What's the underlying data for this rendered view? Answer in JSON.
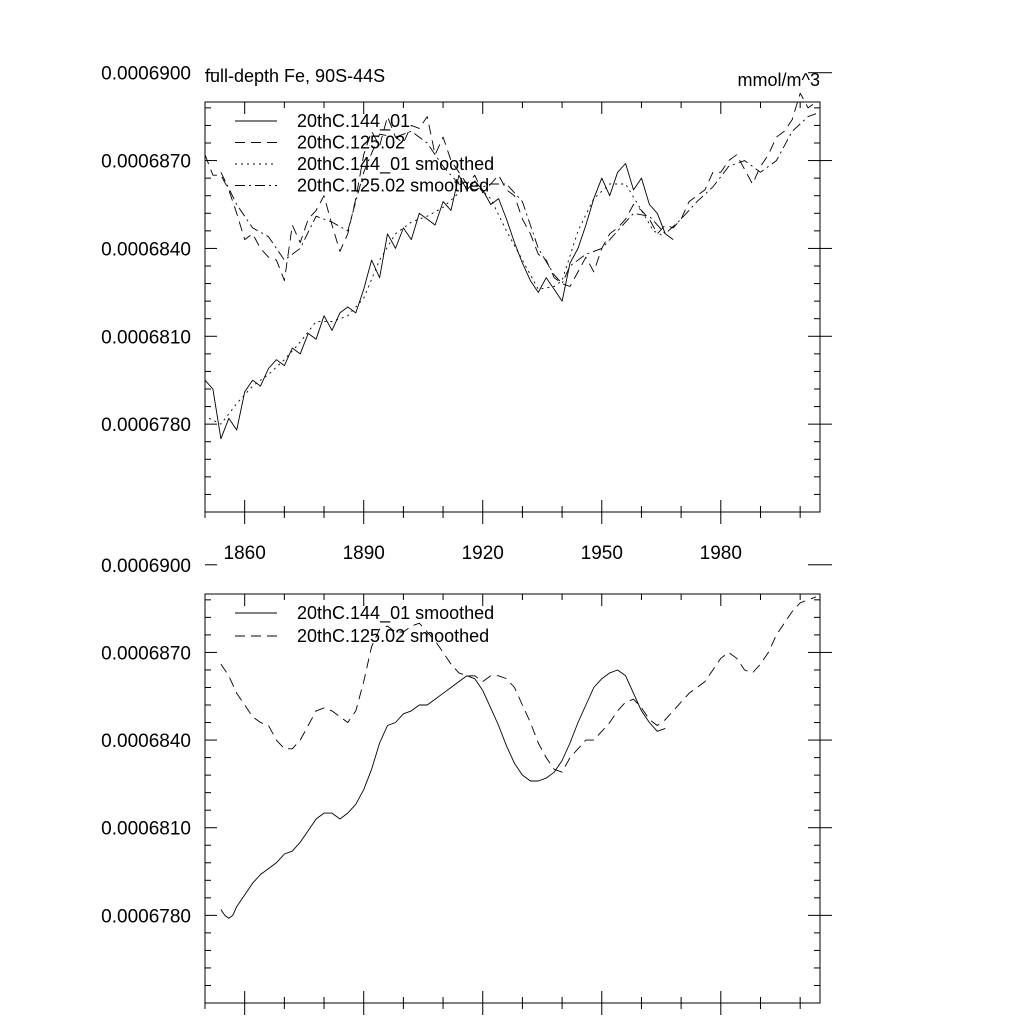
{
  "chart_data": [
    {
      "type": "line",
      "title": "full-depth Fe, 90S-44S",
      "units": "mmol/m^3",
      "xlim": [
        1850,
        2005
      ],
      "ylim": [
        0.000675,
        0.000689
      ],
      "xticks": [
        1860,
        1890,
        1920,
        1950,
        1980
      ],
      "xtick_labels": [
        "1860",
        "1890",
        "1920",
        "1950",
        "1980"
      ],
      "yticks": [
        0.000678,
        0.000681,
        0.000684,
        0.000687,
        0.00069
      ],
      "ytick_labels": [
        "0.0006780",
        "0.0006810",
        "0.0006840",
        "0.0006870",
        "0.0006900"
      ],
      "legend_position": "top-left",
      "series": [
        {
          "name": "20thC.144_01",
          "style": "solid",
          "x": [
            1850,
            1852,
            1854,
            1856,
            1858,
            1860,
            1862,
            1864,
            1866,
            1868,
            1870,
            1872,
            1874,
            1876,
            1878,
            1880,
            1882,
            1884,
            1886,
            1888,
            1890,
            1892,
            1894,
            1896,
            1898,
            1900,
            1902,
            1904,
            1906,
            1908,
            1910,
            1912,
            1914,
            1916,
            1918,
            1920,
            1922,
            1924,
            1926,
            1928,
            1930,
            1932,
            1934,
            1936,
            1938,
            1940,
            1942,
            1944,
            1946,
            1948,
            1950,
            1952,
            1954,
            1956,
            1958,
            1960,
            1962,
            1964,
            1966,
            1968
          ],
          "values": [
            0.0006795,
            0.0006792,
            0.0006775,
            0.0006782,
            0.0006778,
            0.0006791,
            0.0006795,
            0.0006793,
            0.0006799,
            0.0006802,
            0.00068,
            0.0006806,
            0.0006804,
            0.0006811,
            0.0006809,
            0.0006817,
            0.0006812,
            0.0006818,
            0.000682,
            0.0006818,
            0.0006826,
            0.0006836,
            0.000683,
            0.0006845,
            0.000684,
            0.0006847,
            0.0006843,
            0.0006852,
            0.000685,
            0.0006848,
            0.0006856,
            0.0006853,
            0.0006865,
            0.000686,
            0.0006863,
            0.000686,
            0.0006855,
            0.0006857,
            0.000685,
            0.0006842,
            0.0006835,
            0.0006829,
            0.0006825,
            0.000683,
            0.0006826,
            0.0006822,
            0.0006835,
            0.000684,
            0.0006848,
            0.0006857,
            0.0006864,
            0.0006858,
            0.0006866,
            0.0006869,
            0.000686,
            0.0006864,
            0.0006855,
            0.0006852,
            0.0006845,
            0.0006843
          ]
        },
        {
          "name": "20thC.125.02",
          "style": "dashed",
          "x": [
            1850,
            1852,
            1854,
            1856,
            1858,
            1860,
            1862,
            1864,
            1866,
            1868,
            1870,
            1872,
            1874,
            1876,
            1878,
            1880,
            1882,
            1884,
            1886,
            1888,
            1890,
            1892,
            1894,
            1896,
            1898,
            1900,
            1902,
            1904,
            1906,
            1908,
            1910,
            1912,
            1914,
            1916,
            1918,
            1920,
            1922,
            1924,
            1926,
            1928,
            1930,
            1932,
            1934,
            1936,
            1938,
            1940,
            1942,
            1944,
            1946,
            1948,
            1950,
            1952,
            1954,
            1956,
            1958,
            1960,
            1962,
            1964,
            1966,
            1968,
            1970,
            1972,
            1974,
            1976,
            1978,
            1980,
            1982,
            1984,
            1986,
            1988,
            1990,
            1992,
            1994,
            1996,
            1998,
            2000,
            2002,
            2004
          ],
          "values": [
            0.0006872,
            0.0006865,
            0.0006865,
            0.000686,
            0.0006852,
            0.0006843,
            0.0006845,
            0.000684,
            0.0006837,
            0.0006836,
            0.0006829,
            0.0006848,
            0.0006842,
            0.000685,
            0.0006853,
            0.0006858,
            0.0006848,
            0.0006839,
            0.0006845,
            0.0006857,
            0.0006872,
            0.000688,
            0.0006875,
            0.0006885,
            0.0006878,
            0.0006876,
            0.0006882,
            0.0006881,
            0.0006885,
            0.0006872,
            0.0006878,
            0.000687,
            0.0006866,
            0.0006862,
            0.0006865,
            0.0006859,
            0.0006862,
            0.0006865,
            0.000686,
            0.0006858,
            0.000685,
            0.0006845,
            0.0006838,
            0.0006836,
            0.000683,
            0.0006828,
            0.0006827,
            0.0006832,
            0.0006837,
            0.0006832,
            0.000684,
            0.0006845,
            0.0006847,
            0.000685,
            0.0006855,
            0.0006853,
            0.000685,
            0.0006845,
            0.0006848,
            0.0006847,
            0.000685,
            0.0006856,
            0.0006858,
            0.000686,
            0.0006866,
            0.0006866,
            0.000687,
            0.0006872,
            0.0006867,
            0.0006862,
            0.0006868,
            0.0006872,
            0.0006878,
            0.000688,
            0.0006884,
            0.0006893,
            0.0006888,
            0.000689
          ]
        },
        {
          "name": "20thC.144_01 smoothed",
          "style": "dotted",
          "x": [
            1851,
            1854,
            1858,
            1862,
            1866,
            1870,
            1874,
            1878,
            1882,
            1886,
            1890,
            1894,
            1898,
            1902,
            1906,
            1910,
            1914,
            1918,
            1922,
            1926,
            1930,
            1934,
            1938,
            1940,
            1944,
            1948,
            1952,
            1956,
            1960,
            1963,
            1966
          ],
          "values": [
            0.0006782,
            0.000678,
            0.0006787,
            0.0006793,
            0.0006797,
            0.0006802,
            0.0006808,
            0.0006815,
            0.0006815,
            0.0006817,
            0.0006823,
            0.0006836,
            0.0006845,
            0.0006849,
            0.0006851,
            0.0006854,
            0.0006859,
            0.0006862,
            0.0006857,
            0.0006846,
            0.0006836,
            0.0006826,
            0.0006827,
            0.0006829,
            0.0006846,
            0.0006857,
            0.0006862,
            0.0006862,
            0.0006853,
            0.0006846,
            0.0006844
          ]
        },
        {
          "name": "20thC.125.02 smoothed",
          "style": "dash-dot",
          "x": [
            1854,
            1858,
            1862,
            1866,
            1870,
            1874,
            1878,
            1882,
            1886,
            1890,
            1894,
            1898,
            1902,
            1906,
            1910,
            1914,
            1918,
            1922,
            1926,
            1930,
            1934,
            1938,
            1940,
            1942,
            1946,
            1950,
            1954,
            1958,
            1962,
            1966,
            1970,
            1974,
            1978,
            1982,
            1986,
            1990,
            1994,
            1998,
            2002,
            2004
          ],
          "values": [
            0.0006866,
            0.0006855,
            0.0006847,
            0.0006844,
            0.0006836,
            0.000684,
            0.0006851,
            0.0006849,
            0.0006846,
            0.0006866,
            0.0006879,
            0.0006878,
            0.000688,
            0.0006876,
            0.0006868,
            0.0006862,
            0.000686,
            0.0006862,
            0.0006862,
            0.0006856,
            0.000684,
            0.0006831,
            0.0006828,
            0.0006834,
            0.0006838,
            0.000684,
            0.0006846,
            0.0006852,
            0.0006851,
            0.0006845,
            0.000685,
            0.0006856,
            0.0006861,
            0.0006868,
            0.000687,
            0.0006866,
            0.000687,
            0.000688,
            0.0006885,
            0.0006886
          ]
        }
      ]
    },
    {
      "type": "line",
      "xlim": [
        1850,
        2005
      ],
      "ylim": [
        0.000675,
        0.000689
      ],
      "xticks": [
        1860,
        1890,
        1920,
        1950,
        1980
      ],
      "xtick_labels": [],
      "yticks": [
        0.000678,
        0.000681,
        0.000684,
        0.000687,
        0.00069
      ],
      "ytick_labels": [
        "0.0006780",
        "0.0006810",
        "0.0006840",
        "0.0006870",
        "0.0006900"
      ],
      "legend_position": "top-left",
      "series": [
        {
          "name": "20thC.144_01 smoothed",
          "style": "solid",
          "x": [
            1854,
            1855,
            1856,
            1857,
            1858,
            1860,
            1862,
            1864,
            1866,
            1868,
            1870,
            1872,
            1874,
            1876,
            1878,
            1880,
            1882,
            1884,
            1886,
            1888,
            1890,
            1892,
            1894,
            1896,
            1898,
            1900,
            1902,
            1904,
            1906,
            1908,
            1910,
            1912,
            1914,
            1916,
            1918,
            1920,
            1922,
            1924,
            1926,
            1928,
            1930,
            1932,
            1934,
            1936,
            1938,
            1939,
            1940,
            1942,
            1944,
            1946,
            1948,
            1950,
            1952,
            1954,
            1956,
            1958,
            1960,
            1962,
            1964,
            1966
          ],
          "values": [
            0.0006782,
            0.000678,
            0.0006779,
            0.000678,
            0.0006783,
            0.0006787,
            0.0006791,
            0.0006794,
            0.0006796,
            0.0006798,
            0.0006801,
            0.0006802,
            0.0006805,
            0.0006809,
            0.0006813,
            0.0006815,
            0.0006815,
            0.0006813,
            0.0006815,
            0.0006818,
            0.0006823,
            0.000683,
            0.0006839,
            0.0006845,
            0.0006846,
            0.0006849,
            0.000685,
            0.0006852,
            0.0006852,
            0.0006854,
            0.0006856,
            0.0006858,
            0.000686,
            0.0006862,
            0.0006861,
            0.0006857,
            0.0006851,
            0.0006845,
            0.0006838,
            0.0006832,
            0.0006828,
            0.0006826,
            0.0006826,
            0.0006827,
            0.0006829,
            0.0006831,
            0.0006833,
            0.0006839,
            0.0006846,
            0.0006852,
            0.0006858,
            0.0006861,
            0.0006863,
            0.0006864,
            0.0006862,
            0.0006856,
            0.000685,
            0.0006846,
            0.0006843,
            0.0006844
          ]
        },
        {
          "name": "20thC.125.02 smoothed",
          "style": "dashed",
          "x": [
            1854,
            1856,
            1858,
            1860,
            1862,
            1864,
            1866,
            1868,
            1870,
            1872,
            1874,
            1876,
            1878,
            1880,
            1882,
            1884,
            1886,
            1888,
            1890,
            1892,
            1894,
            1896,
            1898,
            1900,
            1902,
            1904,
            1906,
            1908,
            1910,
            1912,
            1914,
            1916,
            1918,
            1920,
            1922,
            1924,
            1926,
            1928,
            1930,
            1932,
            1934,
            1936,
            1938,
            1940,
            1942,
            1944,
            1946,
            1948,
            1950,
            1952,
            1954,
            1956,
            1958,
            1960,
            1962,
            1964,
            1966,
            1968,
            1970,
            1972,
            1974,
            1976,
            1978,
            1980,
            1982,
            1984,
            1986,
            1988,
            1990,
            1992,
            1994,
            1996,
            1998,
            2000,
            2002,
            2004
          ],
          "values": [
            0.0006866,
            0.0006862,
            0.0006856,
            0.0006852,
            0.0006848,
            0.0006846,
            0.0006845,
            0.000684,
            0.0006837,
            0.0006837,
            0.000684,
            0.0006845,
            0.000685,
            0.0006851,
            0.000685,
            0.0006848,
            0.0006846,
            0.000685,
            0.000686,
            0.0006872,
            0.0006878,
            0.0006879,
            0.0006877,
            0.0006877,
            0.0006879,
            0.000688,
            0.0006877,
            0.0006874,
            0.000687,
            0.0006866,
            0.0006863,
            0.0006862,
            0.0006862,
            0.000686,
            0.0006862,
            0.0006862,
            0.0006861,
            0.0006858,
            0.0006852,
            0.0006846,
            0.0006839,
            0.0006834,
            0.000683,
            0.0006829,
            0.0006834,
            0.0006837,
            0.000684,
            0.000684,
            0.0006843,
            0.0006846,
            0.000685,
            0.0006853,
            0.0006854,
            0.0006851,
            0.0006847,
            0.0006845,
            0.0006847,
            0.000685,
            0.0006853,
            0.0006856,
            0.0006858,
            0.000686,
            0.0006864,
            0.0006868,
            0.000687,
            0.0006868,
            0.0006864,
            0.0006863,
            0.0006866,
            0.000687,
            0.0006876,
            0.000688,
            0.0006884,
            0.0006887,
            0.0006888,
            0.0006889
          ]
        }
      ]
    }
  ]
}
